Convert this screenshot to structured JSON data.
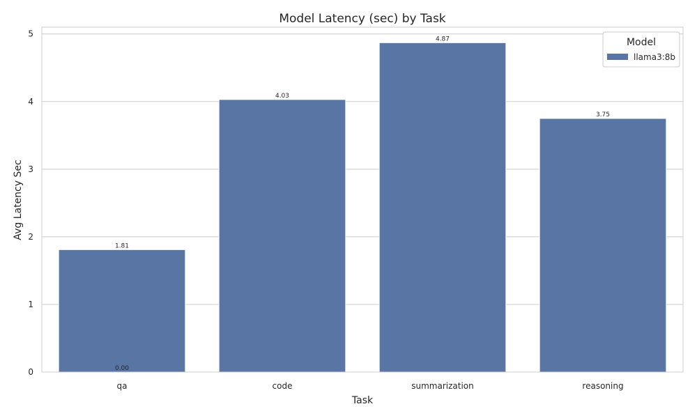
{
  "chart_data": {
    "type": "bar",
    "title": "Model Latency (sec) by Task",
    "xlabel": "Task",
    "ylabel": "Avg Latency Sec",
    "categories": [
      "qa",
      "code",
      "summarization",
      "reasoning"
    ],
    "series": [
      {
        "name": "llama3:8b",
        "values": [
          1.81,
          4.03,
          4.87,
          3.75
        ],
        "color": "#5875a4"
      }
    ],
    "data_labels": [
      "1.81",
      "4.03",
      "4.87",
      "3.75"
    ],
    "extra_labels": [
      {
        "category": "qa",
        "text": "0.00"
      }
    ],
    "ylim": [
      0,
      5.1
    ],
    "yticks": [
      0,
      1,
      2,
      3,
      4,
      5
    ],
    "grid": true,
    "legend": {
      "title": "Model",
      "placement": "top-right"
    }
  }
}
